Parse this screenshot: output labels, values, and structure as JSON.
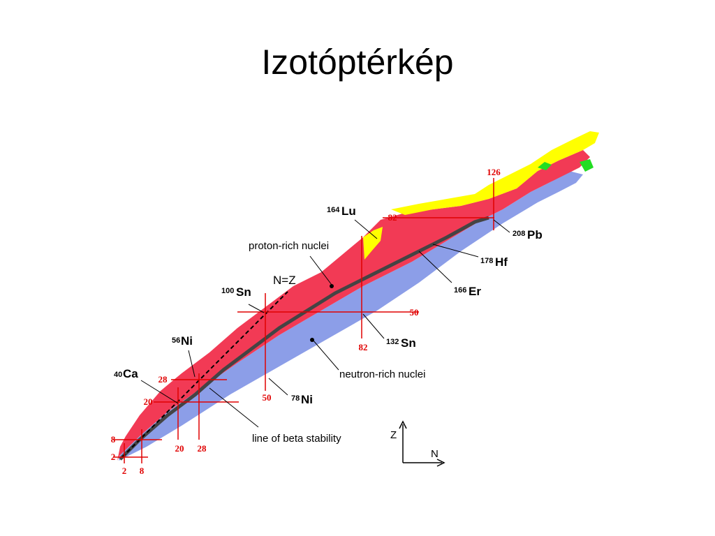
{
  "slide": {
    "title": "Izotóptérkép"
  },
  "colors": {
    "proton_rich": "#f23a55",
    "neutron_rich": "#8c9ee8",
    "heavy": "#ffff00",
    "green": "#22dd22",
    "stable": "#444444",
    "magic": "#e00000"
  },
  "diagram": {
    "region_labels": {
      "proton_rich": "proton-rich nuclei",
      "neutron_rich": "neutron-rich nuclei",
      "beta_line": "line of beta stability",
      "nz": "N=Z"
    },
    "magic_numbers": {
      "n": [
        "2",
        "8",
        "20",
        "28",
        "50",
        "82",
        "126"
      ],
      "z": [
        "2",
        "8",
        "20",
        "28",
        "50",
        "82"
      ],
      "side": [
        "50"
      ]
    },
    "nuclides": [
      {
        "mass": "40",
        "symbol": "Ca"
      },
      {
        "mass": "56",
        "symbol": "Ni"
      },
      {
        "mass": "100",
        "symbol": "Sn"
      },
      {
        "mass": "164",
        "symbol": "Lu"
      },
      {
        "mass": "208",
        "symbol": "Pb"
      },
      {
        "mass": "178",
        "symbol": "Hf"
      },
      {
        "mass": "166",
        "symbol": "Er"
      },
      {
        "mass": "132",
        "symbol": "Sn"
      },
      {
        "mass": "78",
        "symbol": "Ni"
      }
    ],
    "axes": {
      "z": "Z",
      "n": "N"
    }
  }
}
